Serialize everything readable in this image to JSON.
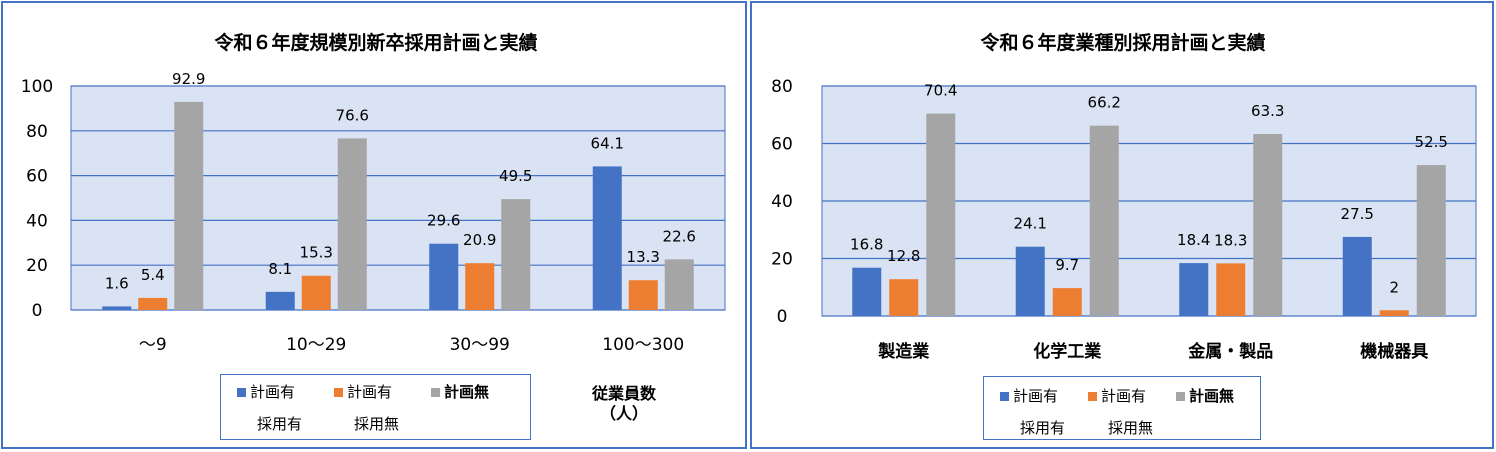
{
  "chart_data": [
    {
      "type": "bar",
      "title": "令和６年度規模別新卒採用計画と実績",
      "categories": [
        "～9",
        "10～29",
        "30～99",
        "100～300"
      ],
      "series": [
        {
          "name": "計画有 採用有",
          "color": "#4472C4",
          "values": [
            1.6,
            8.1,
            29.6,
            64.1
          ]
        },
        {
          "name": "計画有 採用無",
          "color": "#ED7D31",
          "values": [
            5.4,
            15.3,
            20.9,
            13.3
          ]
        },
        {
          "name": "計画無",
          "color": "#A5A5A5",
          "values": [
            92.9,
            76.6,
            49.5,
            22.6
          ]
        }
      ],
      "ylim": [
        0,
        100
      ],
      "yticks": [
        0,
        20,
        40,
        60,
        80,
        100
      ],
      "xlabel": "従業員数（人）",
      "legend": {
        "line1": [
          "計画有",
          "計画有",
          "計画無"
        ],
        "line2": [
          "採用有",
          "採用無"
        ],
        "placement": "bottom"
      },
      "grid": true
    },
    {
      "type": "bar",
      "title": "令和６年度業種別採用計画と実績",
      "categories": [
        "製造業",
        "化学工業",
        "金属・製品",
        "機械器具"
      ],
      "series": [
        {
          "name": "計画有 採用有",
          "color": "#4472C4",
          "values": [
            16.8,
            24.1,
            18.4,
            27.5
          ]
        },
        {
          "name": "計画有 採用無",
          "color": "#ED7D31",
          "values": [
            12.8,
            9.7,
            18.3,
            2
          ]
        },
        {
          "name": "計画無",
          "color": "#A5A5A5",
          "values": [
            70.4,
            66.2,
            63.3,
            52.5
          ]
        }
      ],
      "ylim": [
        0,
        80
      ],
      "yticks": [
        0,
        20,
        40,
        60,
        80
      ],
      "legend": {
        "line1": [
          "計画有",
          "計画有",
          "計画無"
        ],
        "line2": [
          "採用有",
          "採用無"
        ],
        "placement": "bottom"
      },
      "grid": true
    }
  ]
}
